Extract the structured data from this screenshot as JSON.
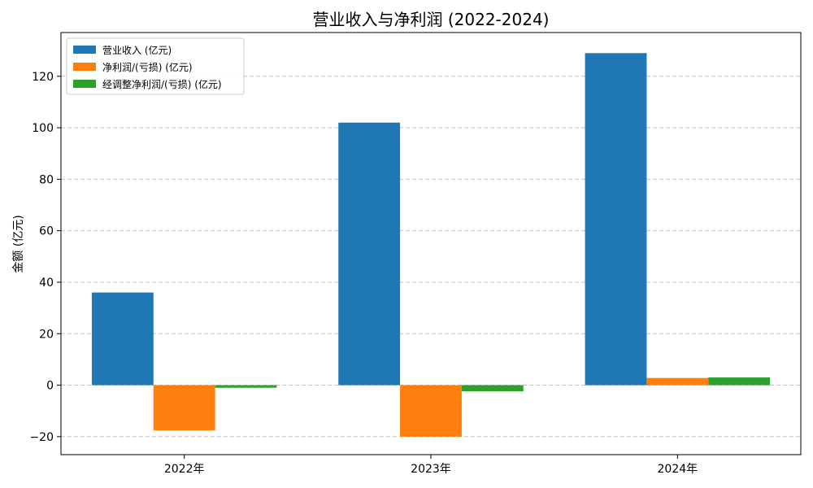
{
  "chart_data": {
    "type": "bar",
    "title": "营业收入与净利润 (2022-2024)",
    "xlabel": "",
    "ylabel": "金额 (亿元)",
    "categories": [
      "2022年",
      "2023年",
      "2024年"
    ],
    "series": [
      {
        "name": "营业收入 (亿元)",
        "color": "#1f77b4",
        "values": [
          36.0,
          102.0,
          129.0
        ]
      },
      {
        "name": "净利润/(亏损) (亿元)",
        "color": "#ff7f0e",
        "values": [
          -17.6,
          -20.0,
          2.8
        ]
      },
      {
        "name": "经调整净利润/(亏损) (亿元)",
        "color": "#2ca02c",
        "values": [
          -1.0,
          -2.4,
          3.0
        ]
      }
    ],
    "ylim": [
      -27,
      137
    ],
    "yticks": [
      -20,
      0,
      20,
      40,
      60,
      80,
      100,
      120
    ],
    "grid": "horizontal-dashed",
    "legend": "top-left"
  }
}
